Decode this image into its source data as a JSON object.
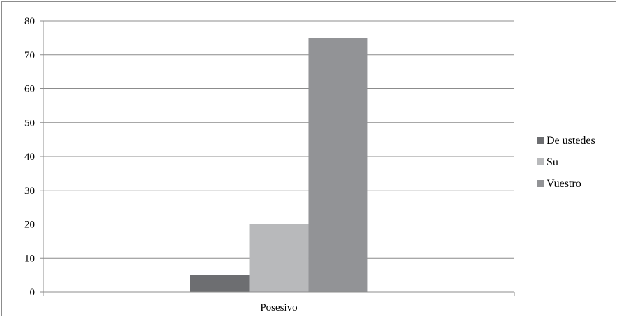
{
  "chart_data": {
    "type": "bar",
    "categories": [
      "Posesivo"
    ],
    "series": [
      {
        "name": "De ustedes",
        "values": [
          5
        ],
        "color": "#6d6e71"
      },
      {
        "name": "Su",
        "values": [
          20
        ],
        "color": "#b8b9bb"
      },
      {
        "name": "Vuestro",
        "values": [
          75
        ],
        "color": "#929396"
      }
    ],
    "title": "",
    "xlabel": "",
    "ylabel": "",
    "ylim": [
      0,
      80
    ],
    "yticks": [
      "0",
      "10",
      "20",
      "30",
      "40",
      "50",
      "60",
      "70",
      "80"
    ],
    "grid": true,
    "legend_position": "right",
    "gridline_color": "#8c8c8c",
    "axis_color": "#8c8c8c"
  }
}
